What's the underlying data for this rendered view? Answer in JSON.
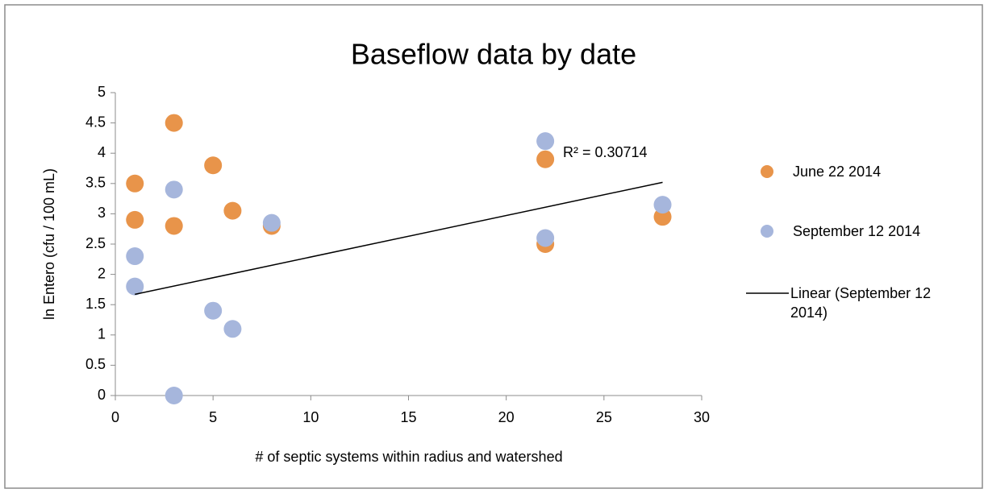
{
  "chart_data": {
    "type": "scatter",
    "title": "Baseflow data by date",
    "xlabel": "# of septic systems within radius and watershed",
    "ylabel": "ln Entero (cfu / 100 mL)",
    "xlim": [
      0,
      30
    ],
    "xticks": [
      0,
      5,
      10,
      15,
      20,
      25,
      30
    ],
    "ylim": [
      0,
      5
    ],
    "yticks": [
      0,
      0.5,
      1,
      1.5,
      2,
      2.5,
      3,
      3.5,
      4,
      4.5,
      5
    ],
    "series": [
      {
        "name": "June 22 2014",
        "color": "#e8944a",
        "x": [
          1,
          1,
          3,
          3,
          5,
          6,
          8,
          22,
          22,
          28
        ],
        "values": [
          3.5,
          2.9,
          4.5,
          2.8,
          3.8,
          3.05,
          2.8,
          3.9,
          2.5,
          2.95
        ]
      },
      {
        "name": "September 12 2014",
        "color": "#a6b6dc",
        "x": [
          1,
          1,
          3,
          3,
          5,
          6,
          8,
          22,
          22,
          28
        ],
        "values": [
          2.3,
          1.8,
          3.4,
          0,
          1.4,
          1.1,
          2.85,
          4.2,
          2.6,
          3.15
        ]
      }
    ],
    "trendline": {
      "name": "Linear (September 12 2014)",
      "series": 1,
      "color": "#000000",
      "r2_label": "R² = 0.30714"
    },
    "legend": "right"
  }
}
